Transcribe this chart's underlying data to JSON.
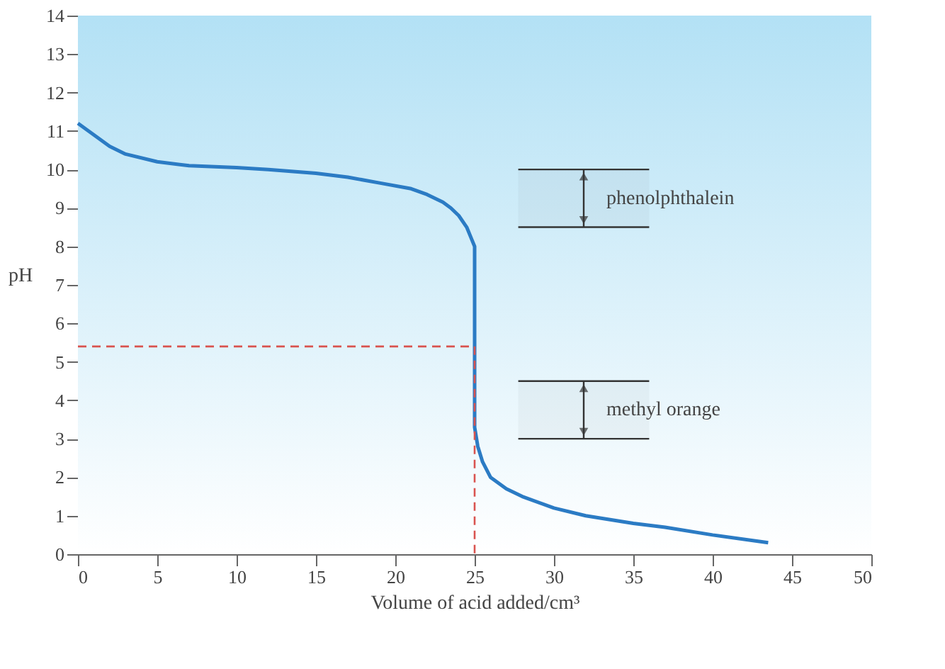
{
  "chart_data": {
    "type": "line",
    "xlabel": "Volume of acid added/cm³",
    "ylabel": "pH",
    "series": [
      {
        "color": "#2b7bc4",
        "line_style": "solid",
        "x": [
          0,
          1,
          2,
          3,
          5,
          7,
          10,
          12,
          15,
          17,
          19,
          21,
          22,
          23,
          23.5,
          24,
          24.5,
          24.8,
          25,
          25,
          25.2,
          25.5,
          26,
          27,
          28,
          30,
          32,
          35,
          37,
          40,
          43.5
        ],
        "values": [
          11.2,
          10.9,
          10.6,
          10.4,
          10.2,
          10.1,
          10.05,
          10.0,
          9.9,
          9.8,
          9.65,
          9.5,
          9.35,
          9.15,
          9.0,
          8.8,
          8.5,
          8.2,
          8.0,
          3.3,
          2.8,
          2.4,
          2.0,
          1.7,
          1.5,
          1.2,
          1.0,
          0.8,
          0.7,
          0.5,
          0.3
        ]
      },
      {
        "type": "line",
        "color": "#d9534f",
        "line_style": "dashed",
        "x": [
          0,
          25,
          25
        ],
        "values": [
          5.4,
          5.4,
          0
        ]
      }
    ],
    "bands": [
      {
        "axis": "y",
        "from": 8.5,
        "to": 10,
        "label": "phenolphthalein",
        "color": "#333333"
      },
      {
        "axis": "y",
        "from": 3,
        "to": 4.5,
        "label": "methyl orange",
        "color": "#333333"
      }
    ],
    "xlim": [
      0,
      50
    ],
    "xticks": [
      0,
      5,
      10,
      15,
      20,
      25,
      30,
      35,
      40,
      45,
      50
    ],
    "ylim": [
      0,
      14
    ],
    "yticks": [
      0,
      1,
      2,
      3,
      4,
      5,
      6,
      7,
      8,
      9,
      10,
      11,
      12,
      13,
      14
    ],
    "grid": false,
    "marker": "none"
  }
}
